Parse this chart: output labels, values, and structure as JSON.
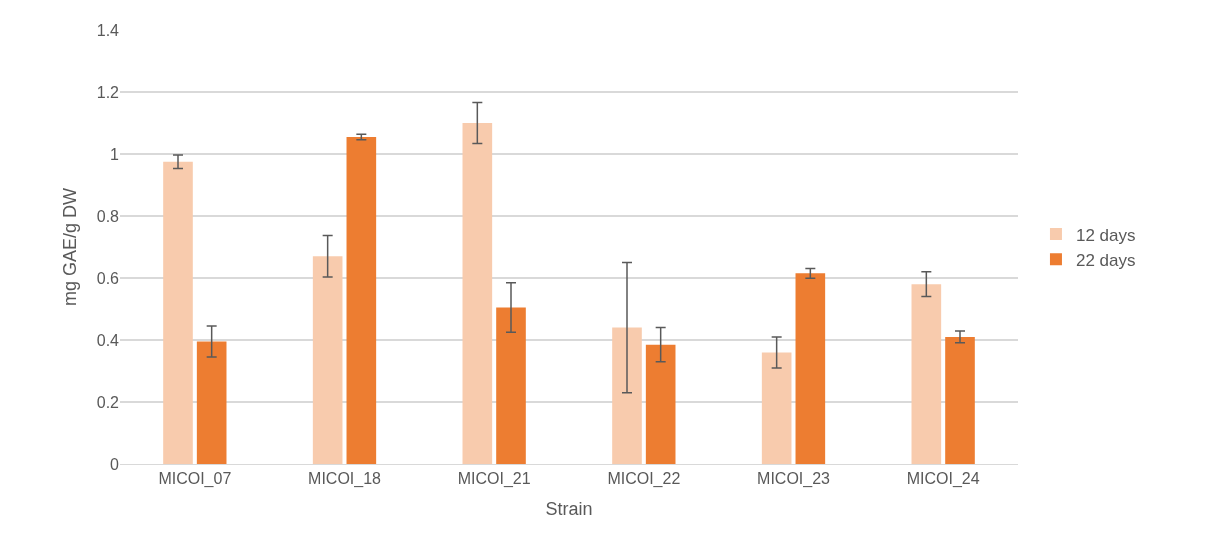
{
  "chart_data": {
    "type": "bar",
    "xlabel": "Strain",
    "ylabel": "mg GAE/g DW",
    "categories": [
      "MICOI_07",
      "MICOI_18",
      "MICOI_21",
      "MICOI_22",
      "MICOI_23",
      "MICOI_24"
    ],
    "series": [
      {
        "name": "12 days",
        "color": "#f8cbad",
        "values": [
          0.975,
          0.67,
          1.1,
          0.44,
          0.36,
          0.58
        ],
        "errors": [
          0.022,
          0.067,
          0.066,
          0.21,
          0.05,
          0.04
        ]
      },
      {
        "name": "22 days",
        "color": "#ed7d31",
        "values": [
          0.395,
          1.055,
          0.505,
          0.385,
          0.615,
          0.41
        ],
        "errors": [
          0.05,
          0.009,
          0.08,
          0.055,
          0.016,
          0.019
        ]
      }
    ],
    "ylim": [
      0,
      1.4
    ],
    "yticks": [
      0,
      0.2,
      0.4,
      0.6,
      0.8,
      1,
      1.2,
      1.4
    ],
    "grid": "y",
    "legend": "right"
  }
}
